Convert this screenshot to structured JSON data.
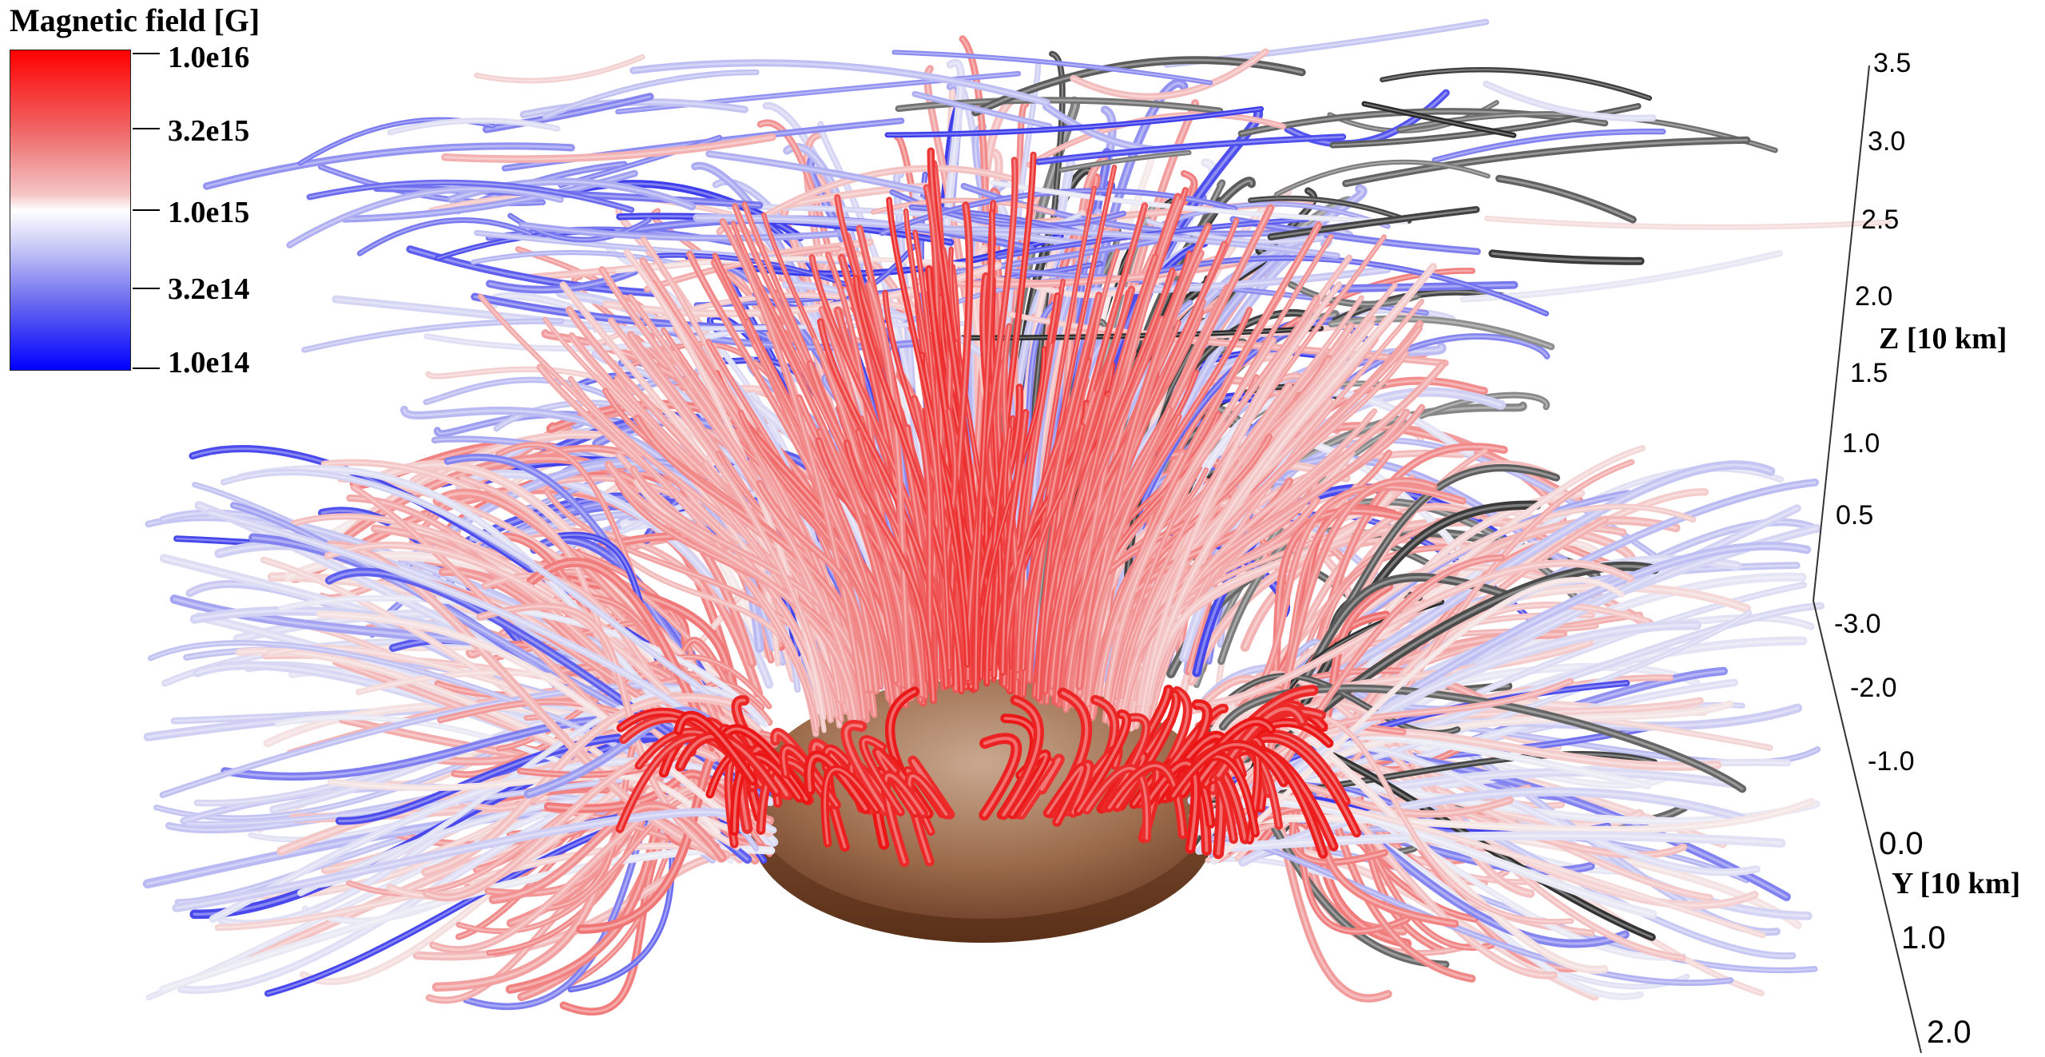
{
  "legend": {
    "title": "Magnetic field [G]",
    "ticks": [
      "1.0e16",
      "3.2e15",
      "1.0e15",
      "3.2e14",
      "1.0e14"
    ],
    "colors": {
      "high": "#ff0000",
      "mid": "#ffffff",
      "low": "#0000ff",
      "weak_lines": "#333333"
    }
  },
  "z_axis": {
    "label": "Z [10 km]",
    "ticks": [
      "3.5",
      "3.0",
      "2.5",
      "2.0",
      "1.5",
      "1.0",
      "0.5"
    ]
  },
  "y_axis": {
    "label": "Y [10 km]",
    "ticks": [
      "-3.0",
      "-2.0",
      "-1.0",
      "0.0",
      "1.0",
      "2.0"
    ]
  },
  "scene": {
    "description_icons": [
      "field-line-tubes",
      "neutron-star-surface"
    ],
    "surface_color": "#a87858"
  }
}
